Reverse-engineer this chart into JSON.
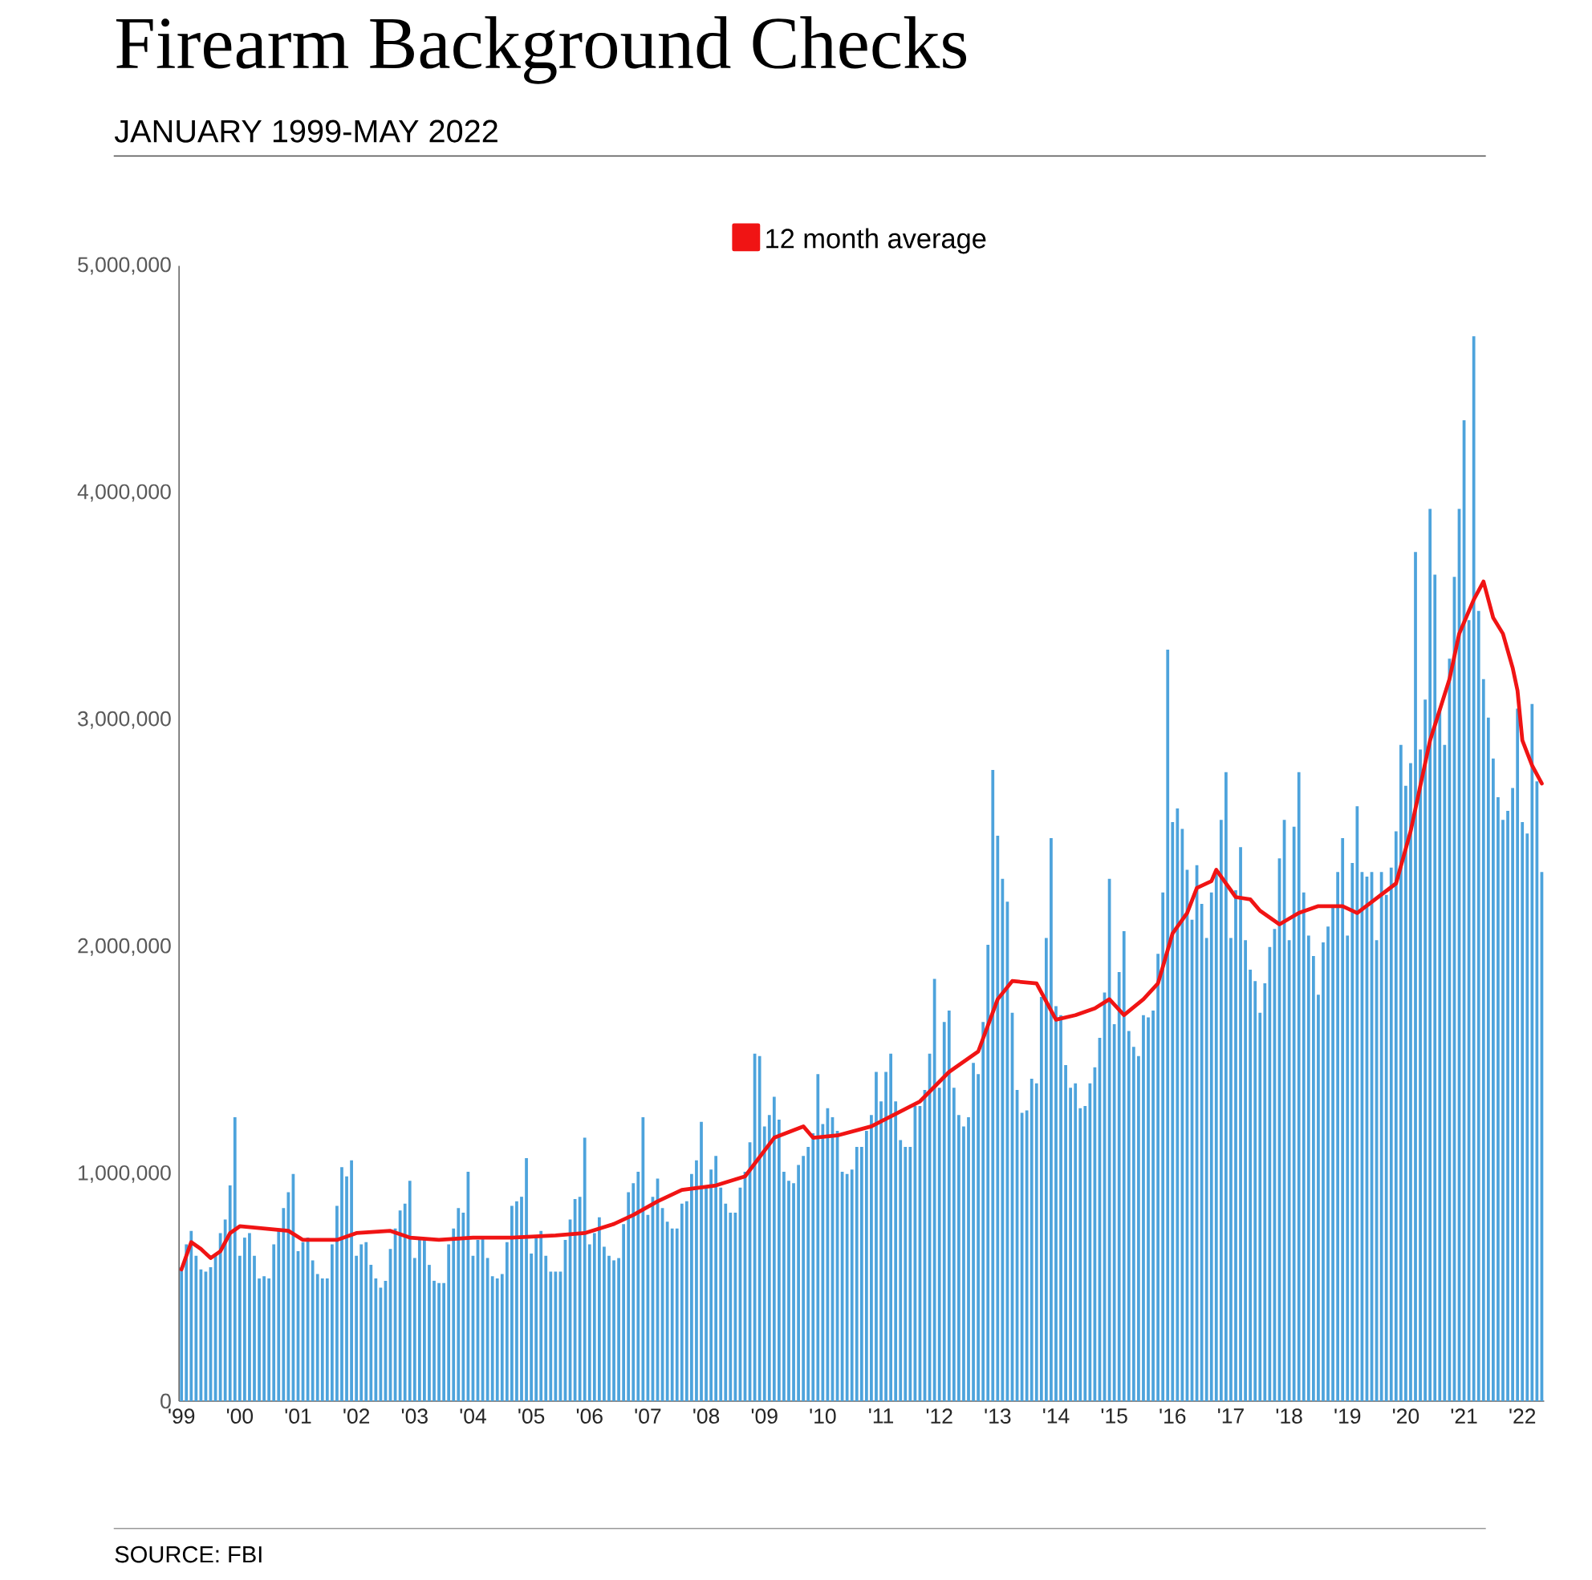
{
  "chart_data": {
    "type": "bar",
    "title": "Firearm Background Checks",
    "subtitle": "JANUARY 1999-MAY 2022",
    "annotations": [
      "SOURCE: FBI"
    ],
    "legend": "top",
    "xlim": [
      "1998-12-16",
      "2022-05-16"
    ],
    "xticks": [
      {
        "value": "1999-01",
        "label": "'99"
      },
      {
        "value": "2000-01",
        "label": "'00"
      },
      {
        "value": "2001-01",
        "label": "'01"
      },
      {
        "value": "2002-01",
        "label": "'02"
      },
      {
        "value": "2003-01",
        "label": "'03"
      },
      {
        "value": "2004-01",
        "label": "'04"
      },
      {
        "value": "2005-01",
        "label": "'05"
      },
      {
        "value": "2006-01",
        "label": "'06"
      },
      {
        "value": "2007-01",
        "label": "'07"
      },
      {
        "value": "2008-01",
        "label": "'08"
      },
      {
        "value": "2009-01",
        "label": "'09"
      },
      {
        "value": "2010-01",
        "label": "'10"
      },
      {
        "value": "2011-01",
        "label": "'11"
      },
      {
        "value": "2012-01",
        "label": "'12"
      },
      {
        "value": "2013-01",
        "label": "'13"
      },
      {
        "value": "2014-01",
        "label": "'14"
      },
      {
        "value": "2015-01",
        "label": "'15"
      },
      {
        "value": "2016-01",
        "label": "'16"
      },
      {
        "value": "2017-01",
        "label": "'17"
      },
      {
        "value": "2018-01",
        "label": "'18"
      },
      {
        "value": "2019-01",
        "label": "'19"
      },
      {
        "value": "2020-01",
        "label": "'20"
      },
      {
        "value": "2021-01",
        "label": "'21"
      },
      {
        "value": "2022-01",
        "label": "'22"
      }
    ],
    "ylim": [
      0,
      5000000
    ],
    "yticks": [
      0,
      {
        "value": 1000000,
        "label": "1,000,000"
      },
      {
        "value": 2000000,
        "label": "2,000,000"
      },
      {
        "value": 3000000,
        "label": "3,000,000"
      },
      {
        "value": 4000000,
        "label": "4,000,000"
      },
      {
        "value": 5000000,
        "label": "5,000,000"
      }
    ],
    "x": [
      "1999-01",
      "1999-02",
      "1999-03",
      "1999-04",
      "1999-05",
      "1999-06",
      "1999-07",
      "1999-08",
      "1999-09",
      "1999-10",
      "1999-11",
      "1999-12",
      "2000-01",
      "2000-02",
      "2000-03",
      "2000-04",
      "2000-05",
      "2000-06",
      "2000-07",
      "2000-08",
      "2000-09",
      "2000-10",
      "2000-11",
      "2000-12",
      "2001-01",
      "2001-02",
      "2001-03",
      "2001-04",
      "2001-05",
      "2001-06",
      "2001-07",
      "2001-08",
      "2001-09",
      "2001-10",
      "2001-11",
      "2001-12",
      "2002-01",
      "2002-02",
      "2002-03",
      "2002-04",
      "2002-05",
      "2002-06",
      "2002-07",
      "2002-08",
      "2002-09",
      "2002-10",
      "2002-11",
      "2002-12",
      "2003-01",
      "2003-02",
      "2003-03",
      "2003-04",
      "2003-05",
      "2003-06",
      "2003-07",
      "2003-08",
      "2003-09",
      "2003-10",
      "2003-11",
      "2003-12",
      "2004-01",
      "2004-02",
      "2004-03",
      "2004-04",
      "2004-05",
      "2004-06",
      "2004-07",
      "2004-08",
      "2004-09",
      "2004-10",
      "2004-11",
      "2004-12",
      "2005-01",
      "2005-02",
      "2005-03",
      "2005-04",
      "2005-05",
      "2005-06",
      "2005-07",
      "2005-08",
      "2005-09",
      "2005-10",
      "2005-11",
      "2005-12",
      "2006-01",
      "2006-02",
      "2006-03",
      "2006-04",
      "2006-05",
      "2006-06",
      "2006-07",
      "2006-08",
      "2006-09",
      "2006-10",
      "2006-11",
      "2006-12",
      "2007-01",
      "2007-02",
      "2007-03",
      "2007-04",
      "2007-05",
      "2007-06",
      "2007-07",
      "2007-08",
      "2007-09",
      "2007-10",
      "2007-11",
      "2007-12",
      "2008-01",
      "2008-02",
      "2008-03",
      "2008-04",
      "2008-05",
      "2008-06",
      "2008-07",
      "2008-08",
      "2008-09",
      "2008-10",
      "2008-11",
      "2008-12",
      "2009-01",
      "2009-02",
      "2009-03",
      "2009-04",
      "2009-05",
      "2009-06",
      "2009-07",
      "2009-08",
      "2009-09",
      "2009-10",
      "2009-11",
      "2009-12",
      "2010-01",
      "2010-02",
      "2010-03",
      "2010-04",
      "2010-05",
      "2010-06",
      "2010-07",
      "2010-08",
      "2010-09",
      "2010-10",
      "2010-11",
      "2010-12",
      "2011-01",
      "2011-02",
      "2011-03",
      "2011-04",
      "2011-05",
      "2011-06",
      "2011-07",
      "2011-08",
      "2011-09",
      "2011-10",
      "2011-11",
      "2011-12",
      "2012-01",
      "2012-02",
      "2012-03",
      "2012-04",
      "2012-05",
      "2012-06",
      "2012-07",
      "2012-08",
      "2012-09",
      "2012-10",
      "2012-11",
      "2012-12",
      "2013-01",
      "2013-02",
      "2013-03",
      "2013-04",
      "2013-05",
      "2013-06",
      "2013-07",
      "2013-08",
      "2013-09",
      "2013-10",
      "2013-11",
      "2013-12",
      "2014-01",
      "2014-02",
      "2014-03",
      "2014-04",
      "2014-05",
      "2014-06",
      "2014-07",
      "2014-08",
      "2014-09",
      "2014-10",
      "2014-11",
      "2014-12",
      "2015-01",
      "2015-02",
      "2015-03",
      "2015-04",
      "2015-05",
      "2015-06",
      "2015-07",
      "2015-08",
      "2015-09",
      "2015-10",
      "2015-11",
      "2015-12",
      "2016-01",
      "2016-02",
      "2016-03",
      "2016-04",
      "2016-05",
      "2016-06",
      "2016-07",
      "2016-08",
      "2016-09",
      "2016-10",
      "2016-11",
      "2016-12",
      "2017-01",
      "2017-02",
      "2017-03",
      "2017-04",
      "2017-05",
      "2017-06",
      "2017-07",
      "2017-08",
      "2017-09",
      "2017-10",
      "2017-11",
      "2017-12",
      "2018-01",
      "2018-02",
      "2018-03",
      "2018-04",
      "2018-05",
      "2018-06",
      "2018-07",
      "2018-08",
      "2018-09",
      "2018-10",
      "2018-11",
      "2018-12",
      "2019-01",
      "2019-02",
      "2019-03",
      "2019-04",
      "2019-05",
      "2019-06",
      "2019-07",
      "2019-08",
      "2019-09",
      "2019-10",
      "2019-11",
      "2019-12",
      "2020-01",
      "2020-02",
      "2020-03",
      "2020-04",
      "2020-05",
      "2020-06",
      "2020-07",
      "2020-08",
      "2020-09",
      "2020-10",
      "2020-11",
      "2020-12",
      "2021-01",
      "2021-02",
      "2021-03",
      "2021-04",
      "2021-05",
      "2021-06",
      "2021-07",
      "2021-08",
      "2021-09",
      "2021-10",
      "2021-11",
      "2021-12",
      "2022-01",
      "2022-02",
      "2022-03",
      "2022-04",
      "2022-05"
    ],
    "series": [
      {
        "color": "#4da3dc",
        "values": [
          590000,
          690000,
          750000,
          640000,
          580000,
          570000,
          590000,
          650000,
          740000,
          800000,
          950000,
          1250000,
          640000,
          720000,
          740000,
          640000,
          540000,
          550000,
          540000,
          690000,
          760000,
          850000,
          920000,
          1000000,
          660000,
          700000,
          720000,
          620000,
          560000,
          540000,
          540000,
          690000,
          860000,
          1030000,
          990000,
          1060000,
          640000,
          690000,
          700000,
          600000,
          540000,
          500000,
          530000,
          670000,
          760000,
          840000,
          870000,
          970000,
          630000,
          720000,
          710000,
          600000,
          530000,
          520000,
          520000,
          690000,
          760000,
          850000,
          830000,
          1010000,
          640000,
          710000,
          720000,
          630000,
          550000,
          540000,
          560000,
          700000,
          860000,
          880000,
          900000,
          1070000,
          650000,
          730000,
          750000,
          640000,
          570000,
          570000,
          570000,
          710000,
          800000,
          890000,
          900000,
          1160000,
          690000,
          740000,
          810000,
          680000,
          640000,
          620000,
          630000,
          780000,
          920000,
          960000,
          1010000,
          1250000,
          820000,
          900000,
          980000,
          850000,
          790000,
          760000,
          760000,
          870000,
          880000,
          1000000,
          1060000,
          1230000,
          940000,
          1020000,
          1080000,
          940000,
          870000,
          830000,
          830000,
          940000,
          1010000,
          1140000,
          1530000,
          1520000,
          1210000,
          1260000,
          1340000,
          1240000,
          1010000,
          970000,
          960000,
          1040000,
          1080000,
          1120000,
          1180000,
          1440000,
          1220000,
          1290000,
          1250000,
          1190000,
          1010000,
          1000000,
          1020000,
          1120000,
          1120000,
          1190000,
          1260000,
          1450000,
          1320000,
          1450000,
          1530000,
          1320000,
          1150000,
          1120000,
          1120000,
          1300000,
          1300000,
          1370000,
          1530000,
          1860000,
          1380000,
          1670000,
          1720000,
          1380000,
          1260000,
          1210000,
          1250000,
          1490000,
          1440000,
          1670000,
          2010000,
          2780000,
          2490000,
          2300000,
          2200000,
          1710000,
          1370000,
          1270000,
          1280000,
          1420000,
          1400000,
          1780000,
          2040000,
          2480000,
          1740000,
          1700000,
          1480000,
          1380000,
          1400000,
          1290000,
          1300000,
          1400000,
          1470000,
          1600000,
          1800000,
          2300000,
          1660000,
          1890000,
          2070000,
          1630000,
          1560000,
          1520000,
          1700000,
          1690000,
          1720000,
          1970000,
          2240000,
          3310000,
          2550000,
          2610000,
          2520000,
          2340000,
          2120000,
          2360000,
          2190000,
          2040000,
          2240000,
          2330000,
          2560000,
          2770000,
          2040000,
          2250000,
          2440000,
          2030000,
          1900000,
          1850000,
          1710000,
          1840000,
          2000000,
          2080000,
          2390000,
          2560000,
          2030000,
          2530000,
          2770000,
          2240000,
          2050000,
          1960000,
          1790000,
          2020000,
          2090000,
          2180000,
          2330000,
          2480000,
          2050000,
          2370000,
          2620000,
          2330000,
          2310000,
          2330000,
          2030000,
          2330000,
          2230000,
          2350000,
          2510000,
          2890000,
          2710000,
          2810000,
          3740000,
          2870000,
          3090000,
          3930000,
          3640000,
          3050000,
          2890000,
          3270000,
          3630000,
          3930000,
          4320000,
          3440000,
          4690000,
          3480000,
          3180000,
          3010000,
          2830000,
          2660000,
          2560000,
          2600000,
          2700000,
          3050000,
          2550000,
          2500000,
          3070000,
          2730000,
          2330000
        ]
      },
      {
        "type": "line",
        "name": "12 month average",
        "color": "#f01414",
        "x": [
          "1999-01",
          "1999-03",
          "1999-05",
          "1999-07",
          "1999-09",
          "1999-11",
          "2000-01",
          "2000-06",
          "2000-11",
          "2001-02",
          "2001-09",
          "2002-01",
          "2002-08",
          "2002-12",
          "2003-06",
          "2004-01",
          "2004-09",
          "2005-06",
          "2005-12",
          "2006-06",
          "2006-10",
          "2007-03",
          "2007-08",
          "2008-03",
          "2008-09",
          "2009-03",
          "2009-09",
          "2009-11",
          "2010-04",
          "2010-11",
          "2011-09",
          "2012-03",
          "2012-09",
          "2013-01",
          "2013-04",
          "2013-09",
          "2014-01",
          "2014-05",
          "2014-09",
          "2014-12",
          "2015-03",
          "2015-07",
          "2015-10",
          "2016-01",
          "2016-04",
          "2016-06",
          "2016-09",
          "2016-10",
          "2017-02",
          "2017-05",
          "2017-07",
          "2017-11",
          "2018-03",
          "2018-07",
          "2018-12",
          "2019-03",
          "2019-11",
          "2020-02",
          "2020-04",
          "2020-06",
          "2020-10",
          "2020-12",
          "2021-03",
          "2021-05",
          "2021-07",
          "2021-09",
          "2021-11",
          "2021-12",
          "2022-01",
          "2022-03",
          "2022-05"
        ],
        "values": [
          580000,
          700000,
          670000,
          630000,
          660000,
          740000,
          770000,
          760000,
          750000,
          710000,
          710000,
          740000,
          750000,
          720000,
          710000,
          720000,
          720000,
          730000,
          740000,
          780000,
          820000,
          880000,
          930000,
          950000,
          990000,
          1160000,
          1210000,
          1160000,
          1170000,
          1210000,
          1320000,
          1450000,
          1540000,
          1770000,
          1850000,
          1840000,
          1680000,
          1700000,
          1730000,
          1770000,
          1700000,
          1770000,
          1840000,
          2060000,
          2150000,
          2260000,
          2290000,
          2340000,
          2220000,
          2210000,
          2160000,
          2100000,
          2150000,
          2180000,
          2180000,
          2150000,
          2280000,
          2510000,
          2710000,
          2910000,
          3180000,
          3380000,
          3530000,
          3610000,
          3450000,
          3380000,
          3230000,
          3130000,
          2910000,
          2800000,
          2720000
        ]
      }
    ]
  }
}
